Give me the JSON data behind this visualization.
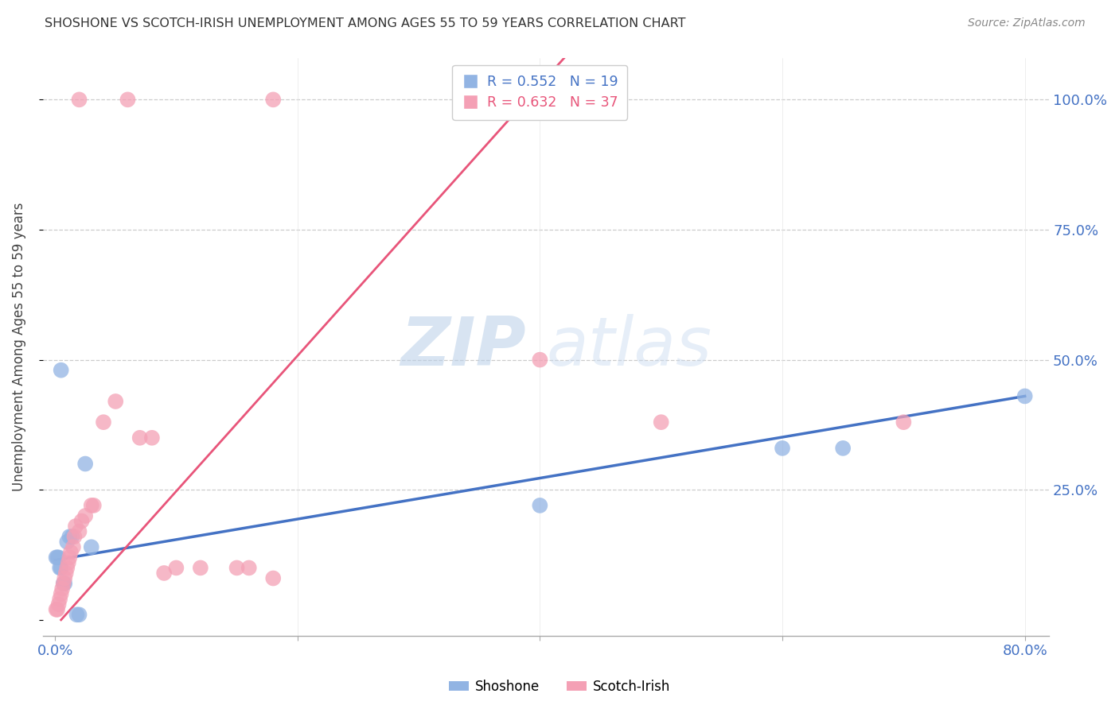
{
  "title": "SHOSHONE VS SCOTCH-IRISH UNEMPLOYMENT AMONG AGES 55 TO 59 YEARS CORRELATION CHART",
  "source": "Source: ZipAtlas.com",
  "ylabel_axis_label": "Unemployment Among Ages 55 to 59 years",
  "shoshone_color": "#92b4e3",
  "scotch_irish_color": "#f4a0b5",
  "shoshone_line_color": "#4472c4",
  "scotch_irish_line_color": "#e8557a",
  "watermark_zip": "ZIP",
  "watermark_atlas": "atlas",
  "background_color": "#ffffff",
  "grid_color": "#cccccc",
  "tick_color": "#4472c4",
  "shoshone_points": [
    [
      0.001,
      0.12
    ],
    [
      0.002,
      0.12
    ],
    [
      0.003,
      0.12
    ],
    [
      0.004,
      0.1
    ],
    [
      0.005,
      0.1
    ],
    [
      0.007,
      0.07
    ],
    [
      0.008,
      0.07
    ],
    [
      0.01,
      0.15
    ],
    [
      0.012,
      0.16
    ],
    [
      0.014,
      0.16
    ],
    [
      0.018,
      0.01
    ],
    [
      0.02,
      0.01
    ],
    [
      0.025,
      0.3
    ],
    [
      0.03,
      0.14
    ],
    [
      0.005,
      0.48
    ],
    [
      0.4,
      0.22
    ],
    [
      0.6,
      0.33
    ],
    [
      0.65,
      0.33
    ],
    [
      0.8,
      0.43
    ]
  ],
  "scotch_irish_points": [
    [
      0.001,
      0.02
    ],
    [
      0.002,
      0.02
    ],
    [
      0.003,
      0.03
    ],
    [
      0.004,
      0.04
    ],
    [
      0.005,
      0.05
    ],
    [
      0.006,
      0.06
    ],
    [
      0.007,
      0.07
    ],
    [
      0.008,
      0.08
    ],
    [
      0.009,
      0.09
    ],
    [
      0.01,
      0.1
    ],
    [
      0.011,
      0.11
    ],
    [
      0.012,
      0.12
    ],
    [
      0.013,
      0.13
    ],
    [
      0.015,
      0.14
    ],
    [
      0.016,
      0.16
    ],
    [
      0.017,
      0.18
    ],
    [
      0.02,
      0.17
    ],
    [
      0.022,
      0.19
    ],
    [
      0.025,
      0.2
    ],
    [
      0.03,
      0.22
    ],
    [
      0.032,
      0.22
    ],
    [
      0.04,
      0.38
    ],
    [
      0.05,
      0.42
    ],
    [
      0.07,
      0.35
    ],
    [
      0.08,
      0.35
    ],
    [
      0.09,
      0.09
    ],
    [
      0.1,
      0.1
    ],
    [
      0.12,
      0.1
    ],
    [
      0.15,
      0.1
    ],
    [
      0.16,
      0.1
    ],
    [
      0.18,
      0.08
    ],
    [
      0.02,
      1.0
    ],
    [
      0.06,
      1.0
    ],
    [
      0.18,
      1.0
    ],
    [
      0.4,
      0.5
    ],
    [
      0.5,
      0.38
    ],
    [
      0.7,
      0.38
    ]
  ],
  "shoshone_line": [
    0.0,
    0.8
  ],
  "scotch_irish_line": [
    0.005,
    0.45
  ],
  "xlim": [
    -0.01,
    0.82
  ],
  "ylim": [
    -0.03,
    1.08
  ],
  "xticks": [
    0.0,
    0.2,
    0.4,
    0.6,
    0.8
  ],
  "xtick_labels": [
    "0.0%",
    "",
    "",
    "",
    "80.0%"
  ],
  "yticks": [
    0.0,
    0.25,
    0.5,
    0.75,
    1.0
  ],
  "ytick_labels_right": [
    "",
    "25.0%",
    "50.0%",
    "75.0%",
    "100.0%"
  ]
}
